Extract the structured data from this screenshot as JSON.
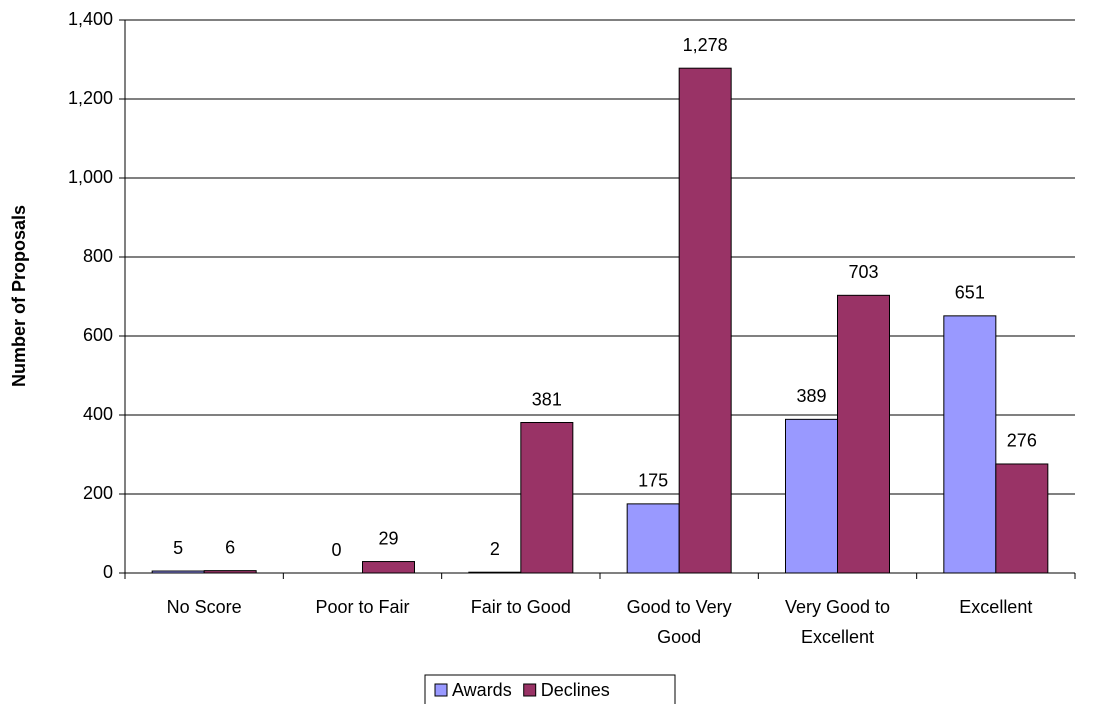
{
  "chart_data": {
    "type": "bar",
    "y_label": "Number of Proposals",
    "categories": [
      "No Score",
      "Poor to Fair",
      "Fair to Good",
      "Good to Very Good",
      "Very Good to Excellent",
      "Excellent"
    ],
    "series": [
      {
        "name": "Awards",
        "color": "#9999ff",
        "values": [
          5,
          0,
          2,
          175,
          389,
          651
        ],
        "value_labels": [
          "5",
          "0",
          "2",
          "175",
          "389",
          "651"
        ]
      },
      {
        "name": "Declines",
        "color": "#993366",
        "values": [
          6,
          29,
          381,
          1278,
          703,
          276
        ],
        "value_labels": [
          "6",
          "29",
          "381",
          "1,278",
          "703",
          "276"
        ]
      }
    ],
    "ylim": [
      0,
      1400
    ],
    "yticks": [
      0,
      200,
      400,
      600,
      800,
      {
        "value": 1000,
        "label": "1,000"
      },
      {
        "value": 1200,
        "label": "1,200"
      },
      {
        "value": 1400,
        "label": "1,400"
      }
    ],
    "grid": true,
    "legend": "bottom"
  }
}
